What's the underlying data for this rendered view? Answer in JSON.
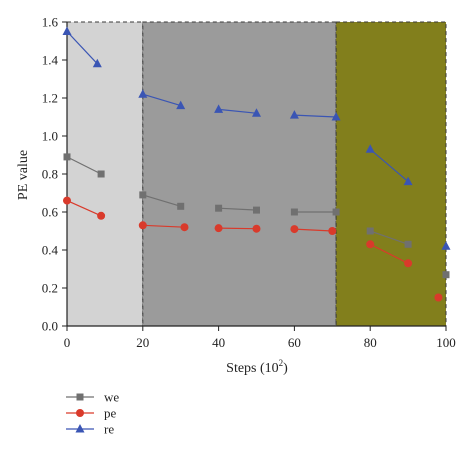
{
  "chart_data": {
    "type": "line",
    "xlabel": "Steps (10",
    "xlabel_sup": "2",
    "xlabel_close": ")",
    "ylabel": "PE value",
    "xlim": [
      0,
      100
    ],
    "ylim": [
      0,
      1.6
    ],
    "x_ticks": [
      0,
      20,
      40,
      60,
      80,
      100
    ],
    "x_tick_labels": [
      "0",
      "20",
      "40",
      "60",
      "80",
      "100"
    ],
    "y_ticks": [
      0.0,
      0.2,
      0.4,
      0.6,
      0.8,
      1.0,
      1.2,
      1.4,
      1.6
    ],
    "y_tick_labels": [
      "0.0",
      "0.2",
      "0.4",
      "0.6",
      "0.8",
      "1.0",
      "1.2",
      "1.4",
      "1.6"
    ],
    "legend_position": "bottom-left, below plot",
    "regions": [
      {
        "x_start": 0,
        "x_end": 20,
        "color": "#d3d3d3"
      },
      {
        "x_start": 20,
        "x_end": 71,
        "color": "#9b9b9b"
      },
      {
        "x_start": 71,
        "x_end": 100,
        "color": "#827f1c"
      }
    ],
    "series": [
      {
        "name": "we",
        "color": "#707070",
        "marker": "square",
        "segments": [
          [
            [
              0,
              0.89
            ],
            [
              9,
              0.8
            ]
          ],
          [
            [
              20,
              0.69
            ],
            [
              30,
              0.63
            ]
          ],
          [
            [
              40,
              0.62
            ],
            [
              50,
              0.61
            ]
          ],
          [
            [
              60,
              0.6
            ],
            [
              71,
              0.6
            ]
          ],
          [
            [
              80,
              0.5
            ],
            [
              90,
              0.43
            ]
          ],
          [
            [
              100,
              0.27
            ]
          ]
        ]
      },
      {
        "name": "pe",
        "color": "#d93a2b",
        "marker": "circle",
        "segments": [
          [
            [
              0,
              0.66
            ],
            [
              9,
              0.58
            ]
          ],
          [
            [
              20,
              0.53
            ],
            [
              31,
              0.52
            ]
          ],
          [
            [
              40,
              0.515
            ],
            [
              50,
              0.512
            ]
          ],
          [
            [
              60,
              0.51
            ],
            [
              70,
              0.5
            ]
          ],
          [
            [
              80,
              0.43
            ],
            [
              90,
              0.33
            ]
          ],
          [
            [
              98,
              0.15
            ]
          ]
        ]
      },
      {
        "name": "re",
        "color": "#3a55b4",
        "marker": "triangle",
        "segments": [
          [
            [
              0,
              1.55
            ],
            [
              8,
              1.38
            ]
          ],
          [
            [
              20,
              1.22
            ],
            [
              30,
              1.16
            ]
          ],
          [
            [
              40,
              1.14
            ],
            [
              50,
              1.12
            ]
          ],
          [
            [
              60,
              1.11
            ],
            [
              71,
              1.1
            ]
          ],
          [
            [
              80,
              0.93
            ],
            [
              90,
              0.76
            ]
          ],
          [
            [
              100,
              0.42
            ]
          ]
        ]
      }
    ]
  }
}
